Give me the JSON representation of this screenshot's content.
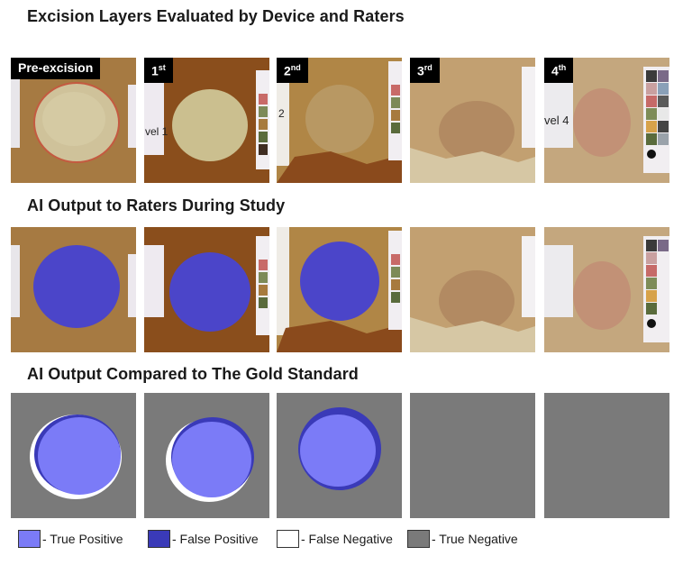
{
  "titles": {
    "row1": "Excision Layers Evaluated by Device and Raters",
    "row2": "AI Output to Raters During Study",
    "row3": "AI Output Compared to The Gold Standard"
  },
  "layers": [
    {
      "base": "Pre-excision",
      "sup": ""
    },
    {
      "base": "1",
      "sup": "st"
    },
    {
      "base": "2",
      "sup": "nd"
    },
    {
      "base": "3",
      "sup": "rd"
    },
    {
      "base": "4",
      "sup": "th"
    }
  ],
  "photo_labels": [
    "",
    "vel 1",
    "2",
    "",
    "vel 4"
  ],
  "legend": [
    {
      "label": "- True Positive",
      "color": "#7b7bf7"
    },
    {
      "label": "- False Positive",
      "color": "#3a3ab8"
    },
    {
      "label": "- False Negative",
      "color": "#ffffff"
    },
    {
      "label": "- True Negative",
      "color": "#7a7a7a"
    }
  ],
  "colors": {
    "background_gray": "#7a7a7a",
    "ai_overlay": "#4b45c9",
    "tissue": "#b98a4c"
  }
}
